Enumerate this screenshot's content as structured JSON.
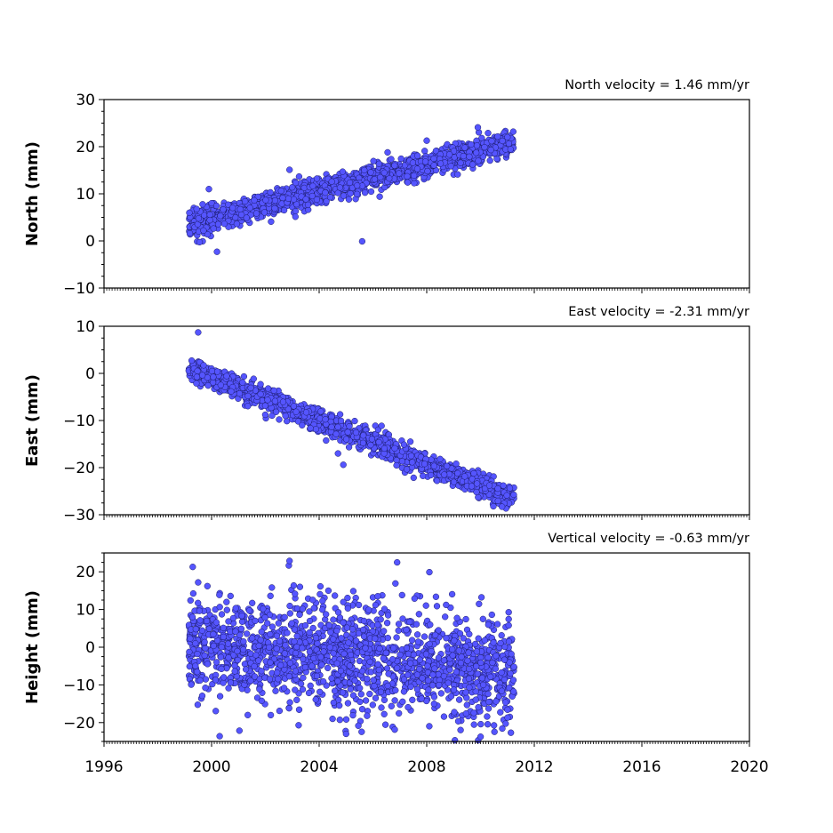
{
  "colors": {
    "marker_fill": "#5555ff",
    "marker_edge": "#1a1a66",
    "axis": "#000000",
    "background": "#ffffff"
  },
  "chart_data": [
    {
      "type": "scatter",
      "title": "",
      "annotation": "North velocity = 1.46 mm/yr",
      "velocity_mm_per_yr": 1.46,
      "ylabel": "North (mm)",
      "ylim": [
        -10,
        30
      ],
      "yticks": [
        -10,
        0,
        10,
        20,
        30
      ],
      "xlim": [
        1996,
        2020
      ],
      "xticks": [],
      "grid": false,
      "series": [
        {
          "x_range": [
            1999.15,
            2011.25
          ],
          "intercept_at_1999": 3.2,
          "scatter_sd_mm": 1.3,
          "outliers": [
            [
              2002.9,
              15.1
            ],
            [
              2009.9,
              24.1
            ],
            [
              2005.6,
              -0.1
            ],
            [
              2000.2,
              -2.3
            ],
            [
              1999.9,
              11.0
            ]
          ]
        }
      ]
    },
    {
      "type": "scatter",
      "title": "",
      "annotation": "East velocity = -2.31 mm/yr",
      "velocity_mm_per_yr": -2.31,
      "ylabel": "East (mm)",
      "ylim": [
        -30,
        10
      ],
      "yticks": [
        -30,
        -20,
        -10,
        0,
        10
      ],
      "xlim": [
        1996,
        2020
      ],
      "xticks": [],
      "grid": false,
      "series": [
        {
          "x_range": [
            1999.15,
            2011.25
          ],
          "intercept_at_1999": 1.5,
          "scatter_sd_mm": 1.2,
          "outliers": [
            [
              1999.5,
              8.7
            ],
            [
              2004.9,
              -19.4
            ],
            [
              2004.7,
              -17.0
            ],
            [
              2010.8,
              -28.3
            ]
          ]
        }
      ]
    },
    {
      "type": "scatter",
      "title": "",
      "annotation": "Vertical velocity = -0.63 mm/yr",
      "velocity_mm_per_yr": -0.63,
      "ylabel": "Height (mm)",
      "ylim": [
        -25,
        25
      ],
      "yticks": [
        -20,
        -10,
        0,
        10,
        20
      ],
      "xlim": [
        1996,
        2020
      ],
      "xticks": [
        1996,
        2000,
        2004,
        2008,
        2012,
        2016,
        2020
      ],
      "grid": false,
      "series": [
        {
          "x_range": [
            1999.15,
            2011.25
          ],
          "intercept_at_1999": 1.0,
          "scatter_sd_mm": 7.0,
          "outliers": [
            [
              2002.9,
              22.9
            ],
            [
              2000.3,
              -23.6
            ],
            [
              2005.0,
              -23.0
            ],
            [
              1999.3,
              21.3
            ],
            [
              2008.1,
              19.9
            ]
          ]
        }
      ]
    }
  ]
}
